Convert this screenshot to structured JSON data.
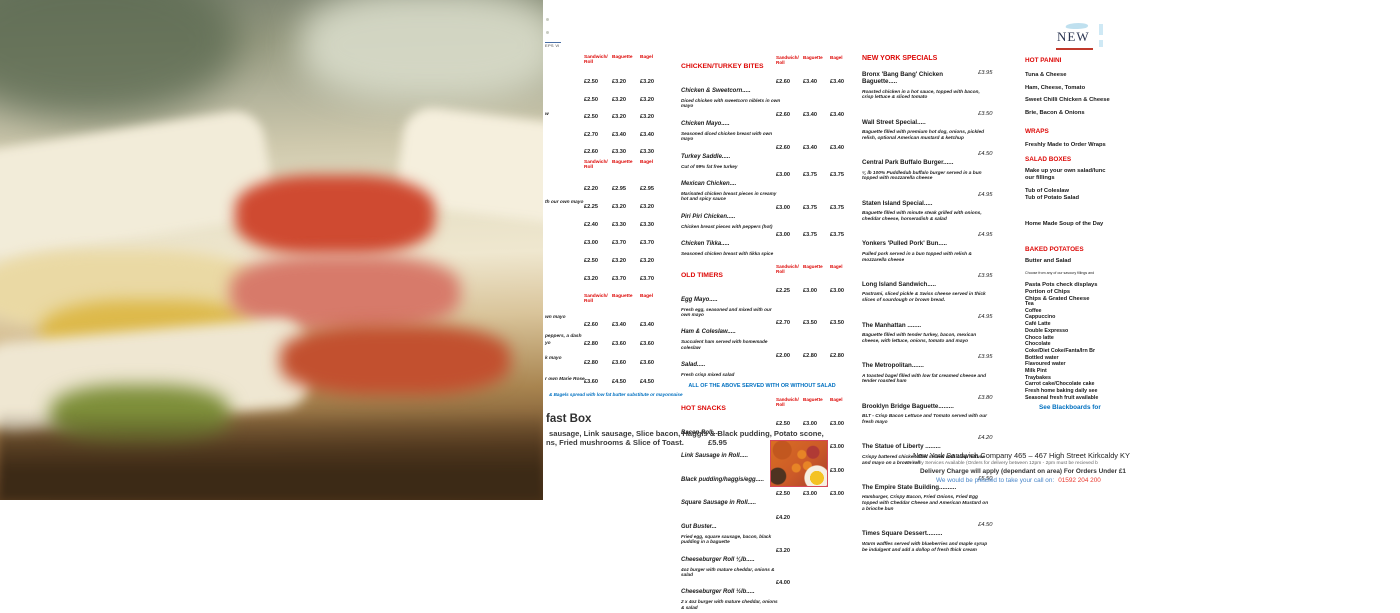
{
  "colors": {
    "header_red": "#dd0806",
    "note_blue": "#0070c0",
    "logo_navy": "#2b3551",
    "logo_red": "#c0392b",
    "phone_red": "#e8392e",
    "footer_blue": "#4a86c8"
  },
  "logo": {
    "text": "NEW",
    "caption": "EPS VI"
  },
  "price_cols": [
    "Sandwich/ Roll",
    "Baguette",
    "Bagel"
  ],
  "left_price_column": {
    "groups": [
      {
        "rows": [
          [
            "£2.50",
            "£3.20",
            "£3.20"
          ],
          [
            "£2.50",
            "£3.20",
            "£3.20"
          ],
          [
            "£2.50",
            "£3.20",
            "£3.20"
          ],
          [
            "£2.70",
            "£3.40",
            "£3.40"
          ],
          [
            "£2.60",
            "£3.30",
            "£3.30"
          ]
        ]
      },
      {
        "rows": [
          [
            "£2.20",
            "£2.95",
            "£2.95"
          ],
          [
            "£2.25",
            "£3.20",
            "£3.20"
          ],
          [
            "£2.40",
            "£3.30",
            "£3.30"
          ],
          [
            "£3.00",
            "£3.70",
            "£3.70"
          ],
          [
            "£2.50",
            "£3.20",
            "£3.20"
          ],
          [
            "£3.20",
            "£3.70",
            "£3.70"
          ]
        ]
      },
      {
        "rows": [
          [
            "£2.60",
            "£3.40",
            "£3.40"
          ],
          [
            "£2.80",
            "£3.60",
            "£3.60"
          ],
          [
            "£2.80",
            "£3.60",
            "£3.60"
          ],
          [
            "£3.60",
            "£4.50",
            "£4.50"
          ]
        ]
      }
    ],
    "edge_fragments": [
      "w",
      "th our own mayo",
      "wn mayo",
      "peppers, a dash",
      "yo",
      "k mayo",
      "r own Marie Rose"
    ],
    "note": "& Bagels spread with low fat butter substitute or mayonnaise"
  },
  "middle_column": {
    "sections": [
      {
        "title": "CHICKEN/TURKEY BITES",
        "items": [
          {
            "name": "Chicken & Sweetcorn.....",
            "desc": "Diced chicken with sweetcorn niblets in own mayo",
            "p1": "£2.60",
            "p2": "£3.40",
            "p3": "£3.40"
          },
          {
            "name": "Chicken Mayo.....",
            "desc": "Seasoned diced chicken breast with own mayo",
            "p1": "£2.60",
            "p2": "£3.40",
            "p3": "£3.40"
          },
          {
            "name": "Turkey Saddle.....",
            "desc": "Cut of 99% fat free turkey",
            "p1": "£2.60",
            "p2": "£3.40",
            "p3": "£3.40"
          },
          {
            "name": "Mexican Chicken....",
            "desc": "Marinated chicken breast pieces in creamy hot and spicy sauce",
            "p1": "£3.00",
            "p2": "£3.75",
            "p3": "£3.75"
          },
          {
            "name": "Piri Piri Chicken.....",
            "desc": "Chicken breast pieces with peppers (hot)",
            "p1": "£3.00",
            "p2": "£3.75",
            "p3": "£3.75"
          },
          {
            "name": "Chicken Tikka.....",
            "desc": "Seasoned chicken breast with tikka spice",
            "p1": "£3.00",
            "p2": "£3.75",
            "p3": "£3.75"
          }
        ]
      },
      {
        "title": "OLD TIMERS",
        "items": [
          {
            "name": "Egg Mayo.....",
            "desc": "Fresh egg, seasoned and mixed with our own mayo",
            "p1": "£2.25",
            "p2": "£3.00",
            "p3": "£3.00"
          },
          {
            "name": "Ham & Coleslaw.....",
            "desc": "Succulent ham served with homemade coleslaw",
            "p1": "£2.70",
            "p2": "£3.50",
            "p3": "£3.50"
          },
          {
            "name": "Salad.....",
            "desc": "Fresh crisp mixed salad",
            "p1": "£2.00",
            "p2": "£2.80",
            "p3": "£2.80"
          }
        ],
        "note_after": "ALL OF THE ABOVE SERVED WITH OR WITHOUT SALAD"
      },
      {
        "title": "HOT SNACKS",
        "items": [
          {
            "name": "Bacon Roll.....",
            "p1": "£2.50",
            "p2": "£3.00",
            "p3": "£3.00"
          },
          {
            "name": "Link Sausage in Roll.....",
            "p1": "£2.50",
            "p2": "£3.00",
            "p3": "£3.00"
          },
          {
            "name": "Black pudding/haggis/egg.....",
            "p1": "£2.50",
            "p2": "£3.00",
            "p3": "£3.00"
          },
          {
            "name": "Square Sausage in Roll.....",
            "p1": "£2.50",
            "p2": "£3.00",
            "p3": "£3.00"
          },
          {
            "name": "Gut Buster...",
            "desc": "Fried egg, square sausage, bacon, black pudding in a baguette",
            "p1": "£4.20"
          },
          {
            "name": "Cheeseburger Roll ¼lb.....",
            "desc": "4oz burger with mature cheddar, onions & salad",
            "p1": "£3.20"
          },
          {
            "name": "Cheeseburger Roll ½lb.....",
            "desc": "2 x 4oz burger with mature cheddar, onions & salad",
            "p1": "£4.00"
          }
        ]
      }
    ]
  },
  "ny_specials": {
    "title": "NEW YORK SPECIALS",
    "items": [
      {
        "name": "Bronx 'Bang Bang' Chicken Baguette.....",
        "price": "£3.95",
        "desc": "Roasted chicken in a hot sauce, topped with bacon, crisp lettuce & sliced tomato"
      },
      {
        "name": "Wall Street Special.....",
        "price": "£3.50",
        "desc": "Baguette filled with premium hot dog, onions, pickled relish, optional American mustard & ketchup"
      },
      {
        "name": "Central Park Buffalo Burger......",
        "price": "£4.50",
        "desc": "¼ lb 100% Puddledub buffalo burger served in a bun topped with mozzarella cheese"
      },
      {
        "name": "Staten Island Special.....",
        "price": "£4.95",
        "desc": "Baguette filled with minute steak grilled with onions, cheddar cheese, horseradish & salad"
      },
      {
        "name": "Yonkers 'Pulled Pork' Bun.....",
        "price": "£4.95",
        "desc": "Pulled pork served in a bun topped with relish & mozzarella cheese"
      },
      {
        "name": "Long Island Sandwich.....",
        "price": "£3.95",
        "desc": "Pastrami, sliced pickle & Swiss cheese served in thick slices of sourdough or brown bread."
      },
      {
        "name": "The Manhattan ........",
        "price": "£4.95",
        "desc": "Baguette filled with tender turkey, bacon, mexican cheese, with lettuce, onions, tomato and mayo"
      },
      {
        "name": "The Metropolitan.......",
        "price": "£3.95",
        "desc": "A toasted bagel filled with low fat creamed cheese and tender roasted ham"
      },
      {
        "name": "Brooklyn Bridge Baguette.........",
        "price": "£3.80",
        "desc": "BLT - Crisp Bacon Lettuce and Tomato served with our fresh mayo"
      },
      {
        "name": "The Statue of Liberty .........",
        "price": "£4.20",
        "desc": "Crispy battered chicken fillet served with crisp lettuce and mayo on a brown roll"
      },
      {
        "name": "The Empire State Building..........",
        "price": "£5.50",
        "desc": "Hamburger, Crispy Bacon, Fried Onions, Fried Egg topped with Cheddar Cheese and American Mustard on a brioche bun"
      },
      {
        "name": "Times Square Dessert.........",
        "price": "£4.50",
        "desc": "Warm waffles served with blueberries and maple syrup be indulgent and add a dollop of fresh thick cream"
      }
    ]
  },
  "right_column": {
    "sections": [
      {
        "title": "HOT PANINI",
        "groups": [
          [
            "Tuna & Cheese",
            "Ham, Cheese, Tomato",
            "Sweet Chilli Chicken & Cheese",
            "Brie, Bacon & Onions"
          ]
        ]
      },
      {
        "title": "WRAPS",
        "groups": [
          [
            "Freshly Made to Order Wraps"
          ]
        ]
      },
      {
        "title": "SALAD BOXES",
        "groups": [
          [
            "Make up your own salad/lunc",
            "our fillings"
          ],
          [
            "Tub of Coleslaw",
            "Tub of Potato Salad"
          ]
        ]
      },
      {
        "title": "",
        "groups": [
          [
            "Home Made Soup of the Day"
          ]
        ]
      },
      {
        "title": "BAKED POTATOES",
        "groups": [
          [
            "Butter and Salad"
          ],
          [
            "Choose from any of our savoury fillings and"
          ],
          [
            "Pasta Pots check displays",
            "Portion of Chips",
            "Chips & Grated Cheese"
          ]
        ]
      }
    ],
    "drinks": [
      "Tea",
      "Coffee",
      "Cappuccino",
      "Café Latte",
      "Double Expresso",
      "Choco latte",
      "Chocolate",
      "Coke/Diet Coke/Fanta/Irn Br",
      "Bottled water",
      "Flavoured water",
      "Milk Pint",
      "Traybakes",
      "Carrot cake/Chocolate cake",
      "Fresh home baking daily see",
      "Seasonal fresh fruit available"
    ],
    "blackboard_note": "See Blackboards for"
  },
  "breakfast": {
    "title": "fast Box",
    "line1": "sausage, Link sausage, Slice bacon, Haggis & Black pudding, Potato scone,",
    "line2": "ns, Fried mushrooms & Slice of Toast.",
    "price": "£5.95"
  },
  "footer": {
    "line1": "New York Sandwich Company    465 – 467 High Street    Kirkcaldy    KY",
    "line2": "Delivery Services Available (Orders for delivery between 12pm - 2pm must be recieved b",
    "line3": "Delivery Charge will apply (dependant on area) For Orders Under £1",
    "line4_prefix": "We would be pleased to take your call on:",
    "phone": "01592 204 200"
  }
}
